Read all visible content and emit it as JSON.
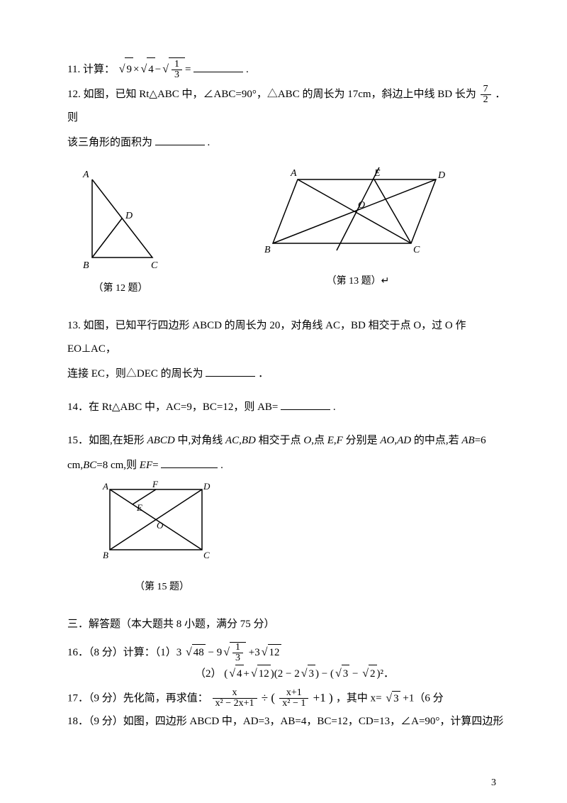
{
  "q11": {
    "prefix": "11. 计算：",
    "expr_html": "<span class='sqrt'><span class='radicand'>9</span></span>×<span class='sqrt'><span class='radicand'>4</span></span>−<span class='sqrt'><span class='radicand'><span class='frac'><span class='num'>1</span><span class='den'>3</span></span></span></span>=",
    "suffix": "."
  },
  "q12": {
    "line1_a": "12. 如图，已知 Rt△ABC 中，∠ABC=90°，△ABC 的周长为 17cm，斜边上中线 BD 长为",
    "frac": {
      "num": "7",
      "den": "2"
    },
    "line1_b": "．则",
    "line2": "该三角形的面积为",
    "suffix": "."
  },
  "fig12_caption": "（第 12 题）",
  "fig13_caption": "（第 13 题）↵",
  "q13": {
    "line1": "13. 如图，已知平行四边形 ABCD 的周长为 20，对角线 AC，BD 相交于点 O，过 O 作 EO⊥AC，",
    "line2": "连接 EC，则△DEC 的周长为",
    "suffix": " ．"
  },
  "q14": {
    "text": "14．在 Rt△ABC 中，AC=9，BC=12，则 AB=",
    "suffix": "."
  },
  "q15": {
    "line1": "15．如图,在矩形 <span class='italic'>ABCD</span> 中,对角线 <span class='italic'>AC</span>,<span class='italic'>BD</span> 相交于点 <span class='italic'>O</span>,点 <span class='italic'>E</span>,<span class='italic'>F</span> 分别是 <span class='italic'>AO</span>,<span class='italic'>AD</span> 的中点,若 <span class='italic'>AB</span>=6",
    "line2_a": "cm,<span class='italic'>BC</span>=8 cm,则 <span class='italic'>EF</span>=",
    "suffix": "."
  },
  "fig15_caption": "（第 15 题）",
  "section3": "三．解答题（本大题共 8 小题，满分 75 分）",
  "q16": {
    "head": "16．（8 分）计算：（1）3",
    "e1_html": "<span class='sqrt'><span class='radicand'>48</span></span> − 9<span class='sqrt'><span class='radicand'><span class='frac'><span class='num'>1</span><span class='den'>3</span></span></span></span> +3<span class='sqrt'><span class='radicand'>12</span></span>",
    "e2_label": "（2）",
    "e2_html": "(<span class='sqrt'><span class='radicand'>4</span></span>+<span class='sqrt'><span class='radicand'>12</span></span>)(2 − 2<span class='sqrt'><span class='radicand'>3</span></span>) − (<span class='sqrt'><span class='radicand'>3</span></span> − <span class='sqrt'><span class='radicand'>2</span></span>)²．"
  },
  "q17": {
    "head": "17．（9 分）先化简，再求值：",
    "expr_left_num": "x",
    "expr_left_den": "x² − 2x+1",
    "div": "÷",
    "expr_right": "( <span class='frac'><span class='num'>x+1</span><span class='den'>x² − 1</span></span> +1 )",
    "tail_a": "，其中 x=",
    "tail_b": " +1（6 分"
  },
  "q18": {
    "text": "18．（9 分）如图，四边形 ABCD 中，AD=3，AB=4，BC=12，CD=13，∠A=90°，计算四边形"
  },
  "fig12": {
    "A": "A",
    "B": "B",
    "C": "C",
    "D": "D",
    "stroke": "#000000",
    "fill": "none",
    "fontsize": 14
  },
  "fig13": {
    "A": "A",
    "B": "B",
    "C": "C",
    "D": "D",
    "E": "E",
    "O": "O",
    "stroke": "#000000"
  },
  "fig15": {
    "A": "A",
    "B": "B",
    "C": "C",
    "D": "D",
    "E": "E",
    "F": "F",
    "O": "O",
    "stroke": "#000000"
  },
  "pagenum": "3"
}
